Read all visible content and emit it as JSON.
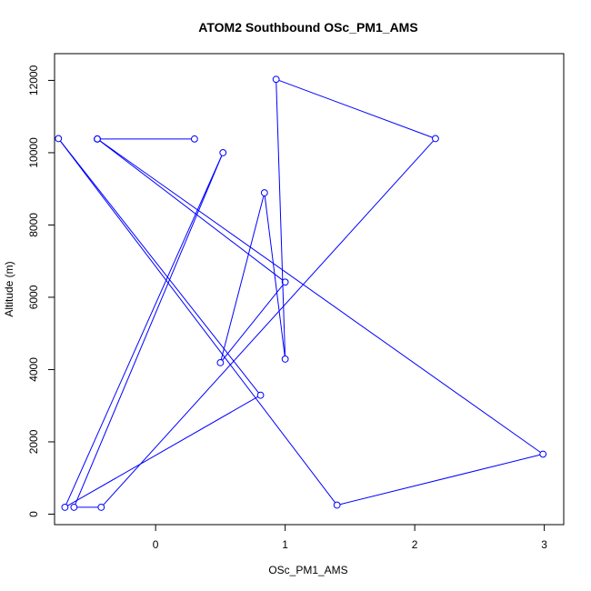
{
  "chart_data": {
    "type": "scatter",
    "title": "ATOM2 Southbound OSc_PM1_AMS",
    "xlabel": "OSc_PM1_AMS",
    "ylabel": "Altitude (m)",
    "xlim": [
      -0.78,
      3.15
    ],
    "ylim": [
      -290,
      12740
    ],
    "x_ticks": [
      0,
      1,
      2,
      3
    ],
    "y_ticks": [
      0,
      2000,
      4000,
      6000,
      8000,
      10000,
      12000
    ],
    "grid": false,
    "legend": "none",
    "line_color": "#0000ff",
    "series": [
      {
        "style": "line-with-open-circles",
        "points": [
          {
            "x": 0.3,
            "y": 10380
          },
          {
            "x": -0.45,
            "y": 10380
          },
          {
            "x": 1.0,
            "y": 6420
          },
          {
            "x": 0.5,
            "y": 4190
          },
          {
            "x": 0.84,
            "y": 8890
          },
          {
            "x": 1.0,
            "y": 4290
          },
          {
            "x": 0.93,
            "y": 12030
          },
          {
            "x": 2.16,
            "y": 10390
          },
          {
            "x": -0.42,
            "y": 190
          },
          {
            "x": -0.63,
            "y": 190
          },
          {
            "x": 0.52,
            "y": 10000
          },
          {
            "x": -0.7,
            "y": 190
          },
          {
            "x": 0.81,
            "y": 3290
          },
          {
            "x": -0.75,
            "y": 10390
          },
          {
            "x": 1.4,
            "y": 250
          },
          {
            "x": 2.99,
            "y": 1660
          },
          {
            "x": -0.45,
            "y": 10380
          }
        ]
      }
    ]
  }
}
